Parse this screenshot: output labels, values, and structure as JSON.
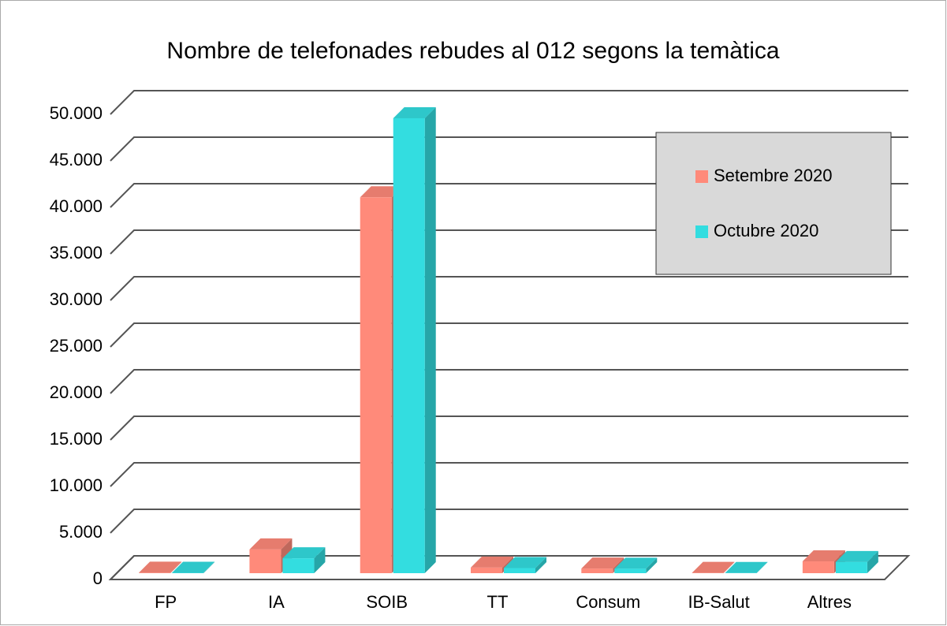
{
  "chart_data": {
    "type": "bar3d",
    "title": "Nombre de telefonades rebudes al 012 segons la temàtica",
    "categories": [
      "FP",
      "IA",
      "SOIB",
      "TT",
      "Consum",
      "IB-Salut",
      "Altres"
    ],
    "series": [
      {
        "name": "Setembre 2020",
        "color": "#ff8a7a",
        "values": [
          50,
          2550,
          40400,
          600,
          500,
          30,
          1270
        ]
      },
      {
        "name": "Octubre 2020",
        "color": "#33dde0",
        "values": [
          40,
          1600,
          48900,
          550,
          480,
          25,
          1200
        ]
      }
    ],
    "ylim": [
      0,
      50000
    ],
    "yticks": [
      0,
      {
        "value": 5000,
        "label": "5.000"
      },
      {
        "value": 10000,
        "label": "10.000"
      },
      {
        "value": 15000,
        "label": "15.000"
      },
      {
        "value": 20000,
        "label": "20.000"
      },
      {
        "value": 25000,
        "label": "25.000"
      },
      {
        "value": 30000,
        "label": "30.000"
      },
      {
        "value": 35000,
        "label": "35.000"
      },
      {
        "value": 40000,
        "label": "40.000"
      },
      {
        "value": 45000,
        "label": "45.000"
      },
      {
        "value": 50000,
        "label": "50.000"
      }
    ],
    "grid": true,
    "legend": "top-right"
  }
}
